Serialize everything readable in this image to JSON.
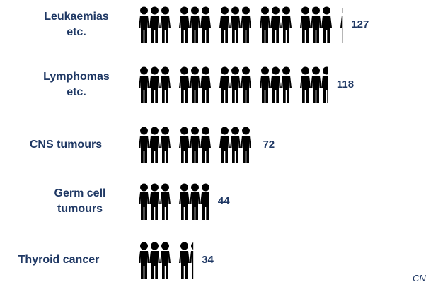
{
  "chart_data": {
    "type": "pictogram",
    "categories": [
      "Leukaemias etc.",
      "Lymphomas etc.",
      "CNS tumours",
      "Germ cell tumours",
      "Thyroid cancer"
    ],
    "values": [
      127,
      118,
      72,
      44,
      34
    ],
    "color": "#000000",
    "label_color": "#1f3864",
    "annotations": [
      "CN"
    ]
  }
}
